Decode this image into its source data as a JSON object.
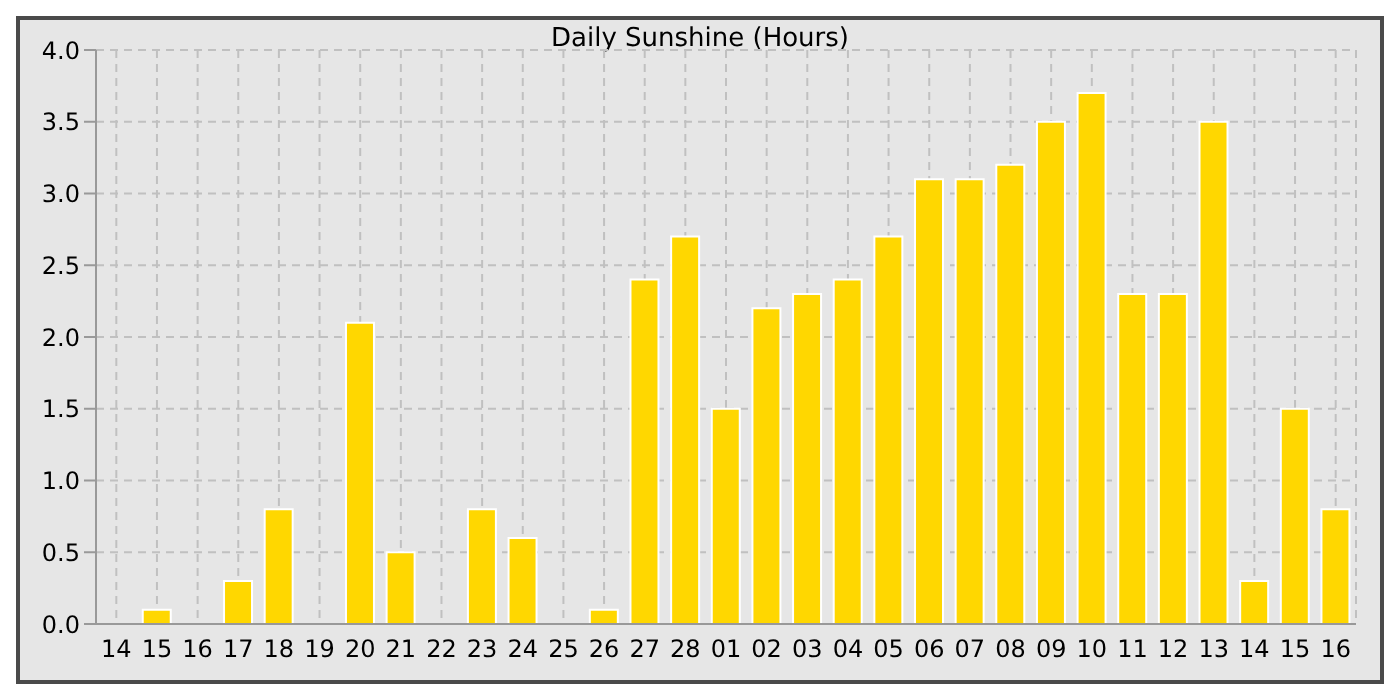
{
  "chart_data": {
    "type": "bar",
    "title": "Daily Sunshine (Hours)",
    "categories": [
      "14",
      "15",
      "16",
      "17",
      "18",
      "19",
      "20",
      "21",
      "22",
      "23",
      "24",
      "25",
      "26",
      "27",
      "28",
      "01",
      "02",
      "03",
      "04",
      "05",
      "06",
      "07",
      "08",
      "09",
      "10",
      "11",
      "12",
      "13",
      "14",
      "15",
      "16"
    ],
    "values": [
      0,
      0.1,
      0,
      0.3,
      0.8,
      0,
      2.1,
      0.5,
      0,
      0.8,
      0.6,
      0,
      0.1,
      2.4,
      2.7,
      1.5,
      2.2,
      2.3,
      2.4,
      2.7,
      3.1,
      3.1,
      3.2,
      3.5,
      3.7,
      2.3,
      2.3,
      3.5,
      0.3,
      1.5,
      0.8
    ],
    "color": "#ffd700",
    "ylim": [
      0,
      4
    ],
    "yticks": [
      {
        "value": 0,
        "label": "0.0"
      },
      {
        "value": 0.5,
        "label": "0.5"
      },
      {
        "value": 1,
        "label": "1.0"
      },
      {
        "value": 1.5,
        "label": "1.5"
      },
      {
        "value": 2,
        "label": "2.0"
      },
      {
        "value": 2.5,
        "label": "2.5"
      },
      {
        "value": 3,
        "label": "3.0"
      },
      {
        "value": 3.5,
        "label": "3.5"
      },
      {
        "value": 4,
        "label": "4.0"
      }
    ],
    "grid": true
  }
}
